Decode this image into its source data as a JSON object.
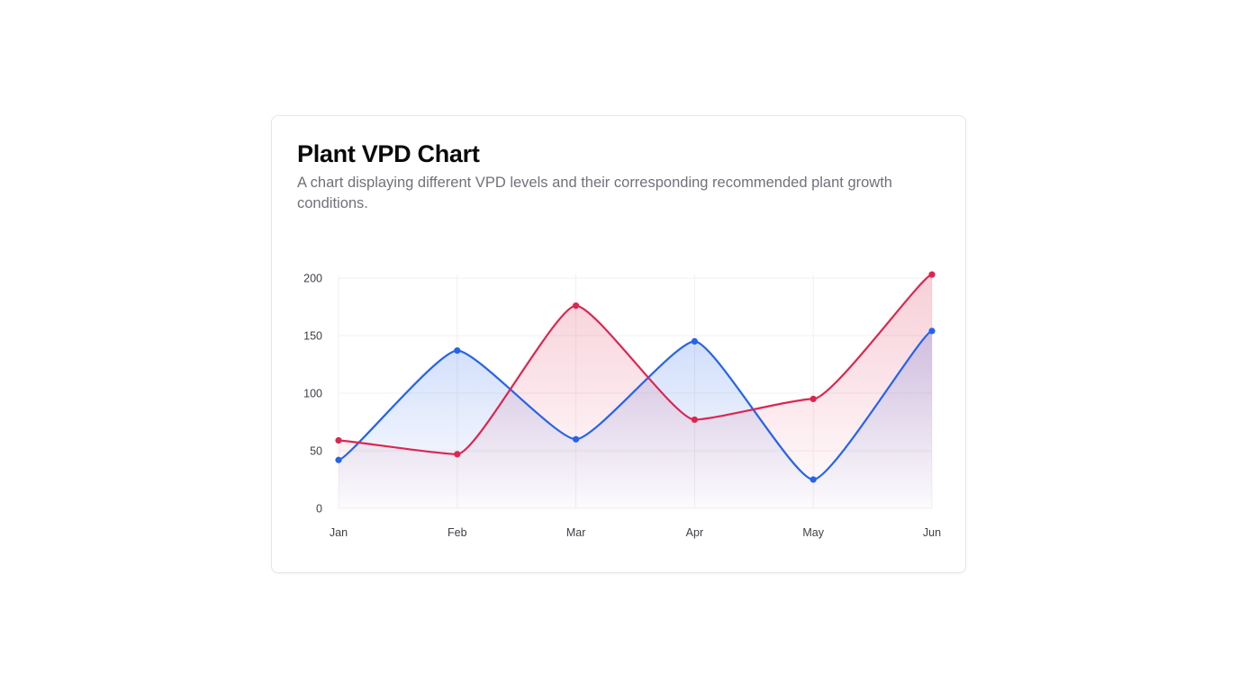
{
  "card": {
    "title": "Plant VPD Chart",
    "description": "A chart displaying different VPD levels and their corresponding recommended plant growth conditions."
  },
  "colors": {
    "series_a": "#2563eb",
    "series_b": "#dc2650",
    "grid": "#f0f0f0"
  },
  "chart_data": {
    "type": "area",
    "title": "",
    "xlabel": "",
    "ylabel": "",
    "categories": [
      "Jan",
      "Feb",
      "Mar",
      "Apr",
      "May",
      "Jun"
    ],
    "ylim": [
      0,
      200
    ],
    "yticks": [
      0,
      50,
      100,
      150,
      200
    ],
    "grid": true,
    "legend": "none",
    "curve": "smooth",
    "series": [
      {
        "values": [
          42,
          137,
          60,
          145,
          25,
          154
        ],
        "color": "#2563eb"
      },
      {
        "values": [
          59,
          47,
          176,
          77,
          95,
          203
        ],
        "color": "#dc2650"
      }
    ]
  }
}
